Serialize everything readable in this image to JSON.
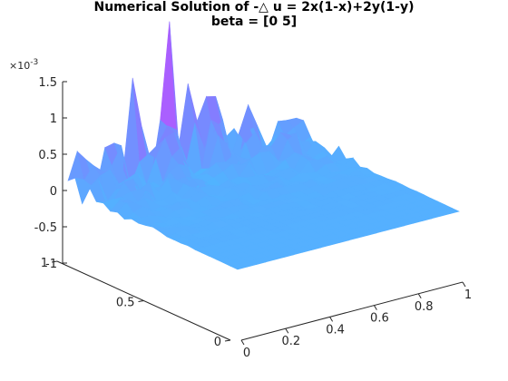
{
  "chart_data": {
    "type": "surface",
    "title": "Numerical Solution of -△ u = 2x(1-x)+2y(1-y)",
    "subtitle": "beta = [0 5]",
    "xlabel": "",
    "ylabel": "",
    "zlabel": "",
    "xlim": [
      0,
      1
    ],
    "ylim": [
      0,
      1
    ],
    "zlim": [
      -0.001,
      0.0015
    ],
    "x_ticks": [
      "0",
      "0.2",
      "0.4",
      "0.6",
      "0.8",
      "1"
    ],
    "x_tick_values": [
      0,
      0.2,
      0.4,
      0.6,
      0.8,
      1
    ],
    "y_ticks": [
      "0",
      "0.5",
      "1"
    ],
    "y_tick_values": [
      0,
      0.5,
      1
    ],
    "z_ticks": [
      "-1",
      "-0.5",
      "0",
      "0.5",
      "1",
      "1.5"
    ],
    "z_tick_values": [
      -1,
      -0.5,
      0,
      0.5,
      1,
      1.5
    ],
    "z_exponent_prefix": "×10",
    "z_exponent": "-3",
    "colormap": [
      "#4db8ff",
      "#8080ff",
      "#cc44ff",
      "#ff33ff"
    ],
    "grid": false,
    "note_values": "u(x,y) in units of 1e-3, grid x,y in [0,1]; mostly ~0 with noisy spikes near y=1, peak ~1.9e-3 near x≈0.45,y≈1",
    "peaks": [
      {
        "x": 0.45,
        "y": 1.0,
        "z": 1.9
      },
      {
        "x": 0.3,
        "y": 1.0,
        "z": 1.1
      },
      {
        "x": 0.55,
        "y": 1.0,
        "z": 1.1
      },
      {
        "x": 0.05,
        "y": 1.0,
        "z": 0.4
      },
      {
        "x": 0.65,
        "y": 1.0,
        "z": 0.8
      },
      {
        "x": 0.75,
        "y": 0.9,
        "z": 0.6
      },
      {
        "x": 0.6,
        "y": 0.9,
        "z": 0.7
      },
      {
        "x": 0.4,
        "y": 0.9,
        "z": 0.9
      },
      {
        "x": 0.2,
        "y": 1.0,
        "z": 0.6
      },
      {
        "x": 0.85,
        "y": 0.8,
        "z": 0.4
      }
    ]
  }
}
